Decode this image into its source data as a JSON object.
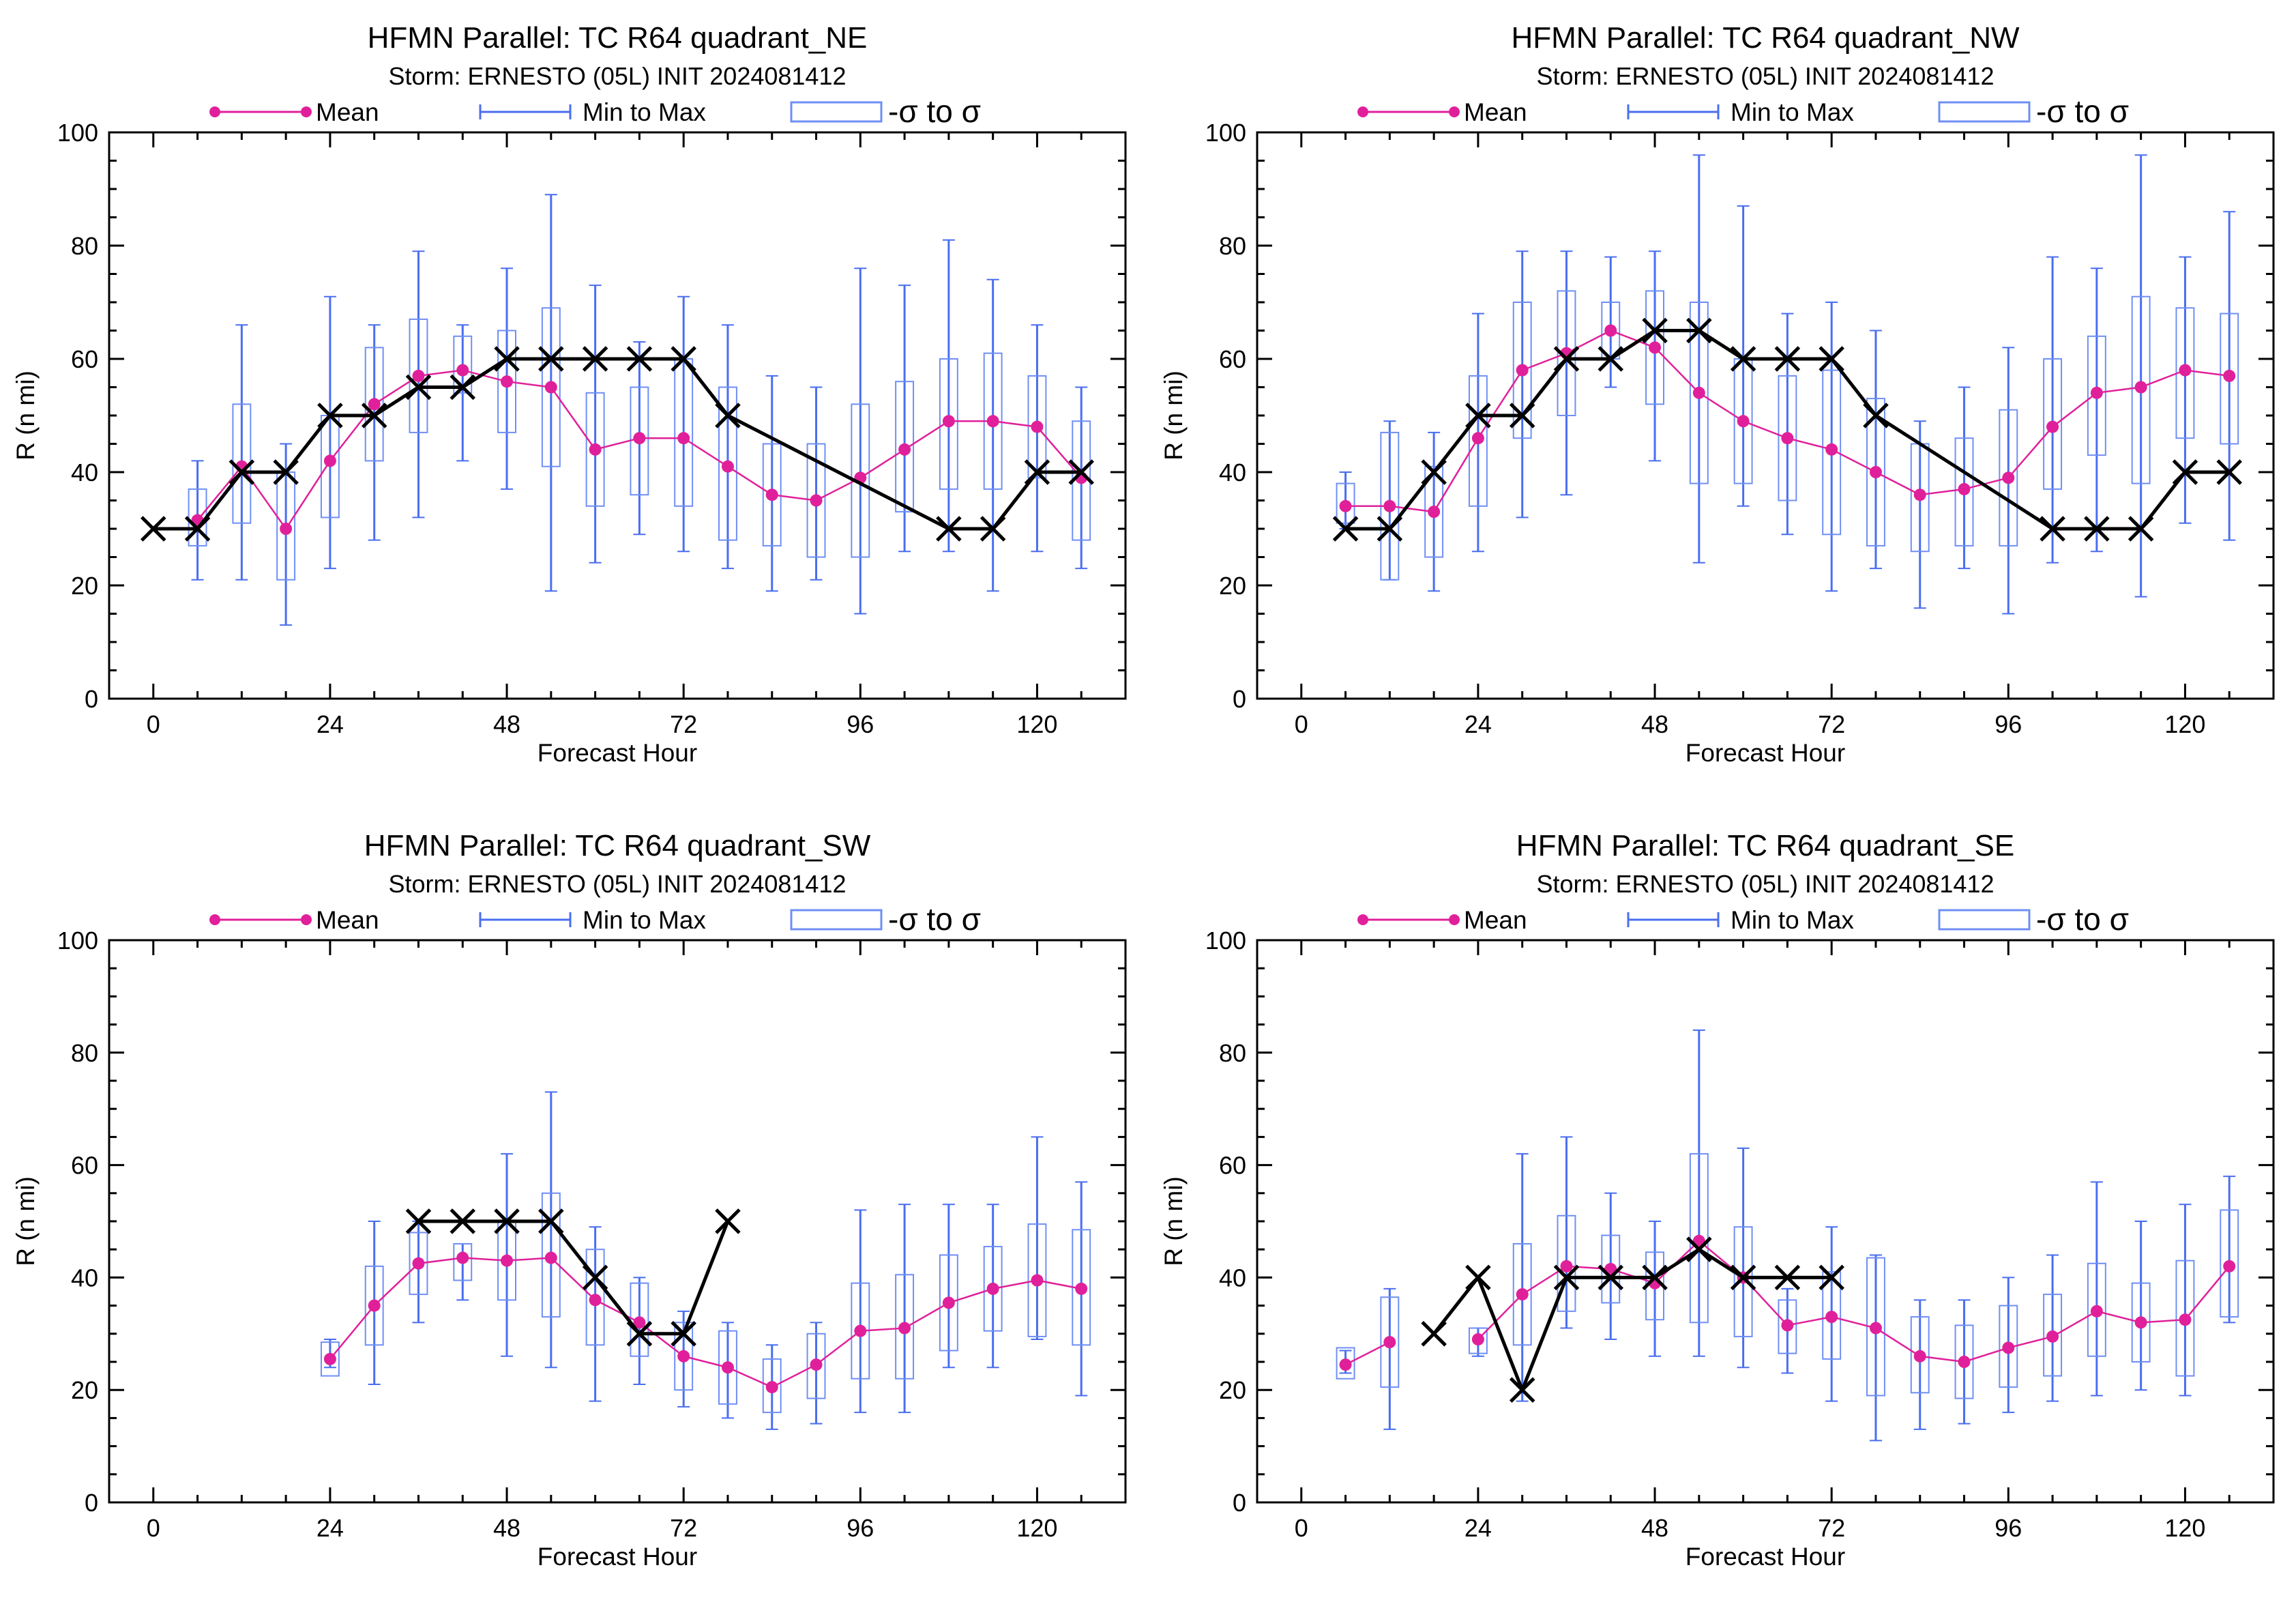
{
  "colors": {
    "mean": "#e0209a",
    "minmax": "#4a6ef0",
    "sigma_box": "#6f8ff5",
    "best_track": "#000000"
  },
  "legend": {
    "mean": "Mean",
    "minmax": "Min to Max",
    "sigma": "-σ to σ"
  },
  "chart_data": [
    {
      "type": "box",
      "title": "HFMN Parallel: TC  R64 quadrant_NE",
      "subtitle": "Storm: ERNESTO (05L) INIT 2024081412",
      "xlabel": "Forecast Hour",
      "ylabel": "R (n mi)",
      "xlim": [
        -6,
        132
      ],
      "ylim": [
        0,
        100
      ],
      "xticks": [
        0,
        24,
        48,
        72,
        96,
        120
      ],
      "yticks": [
        0,
        20,
        40,
        60,
        80,
        100
      ],
      "x": [
        6,
        12,
        18,
        24,
        30,
        36,
        42,
        48,
        54,
        60,
        66,
        72,
        78,
        84,
        90,
        96,
        102,
        108,
        114,
        120,
        126
      ],
      "mean": [
        31.5,
        41,
        30,
        42,
        52,
        57,
        58,
        56,
        55,
        44,
        46,
        46,
        41,
        36,
        35,
        39,
        44,
        49,
        49,
        48,
        39
      ],
      "min": [
        21,
        21,
        13,
        23,
        28,
        32,
        42,
        37,
        19,
        24,
        29,
        26,
        23,
        19,
        21,
        15,
        26,
        26,
        19,
        26,
        23
      ],
      "max": [
        42,
        66,
        45,
        71,
        66,
        79,
        66,
        76,
        89,
        73,
        63,
        71,
        66,
        57,
        55,
        76,
        73,
        81,
        74,
        66,
        55
      ],
      "sigma_low": [
        27,
        31,
        21,
        32,
        42,
        47,
        54,
        47,
        41,
        34,
        36,
        34,
        28,
        27,
        25,
        25,
        33,
        37,
        37,
        39,
        28
      ],
      "sigma_high": [
        37,
        52,
        40,
        50,
        62,
        67,
        64,
        65,
        69,
        54,
        55,
        60,
        55,
        45,
        45,
        52,
        56,
        60,
        61,
        57,
        49
      ],
      "best_track": {
        "x": [
          0,
          6,
          12,
          18,
          24,
          30,
          36,
          42,
          48,
          54,
          60,
          66,
          72,
          78,
          108,
          114,
          120,
          126
        ],
        "y": [
          30,
          30,
          40,
          40,
          50,
          50,
          55,
          55,
          60,
          60,
          60,
          60,
          60,
          50,
          30,
          30,
          40,
          40
        ]
      }
    },
    {
      "type": "box",
      "title": "HFMN Parallel: TC  R64 quadrant_NW",
      "subtitle": "Storm: ERNESTO (05L) INIT 2024081412",
      "xlabel": "Forecast Hour",
      "ylabel": "R (n mi)",
      "xlim": [
        -6,
        132
      ],
      "ylim": [
        0,
        100
      ],
      "xticks": [
        0,
        24,
        48,
        72,
        96,
        120
      ],
      "yticks": [
        0,
        20,
        40,
        60,
        80,
        100
      ],
      "x": [
        6,
        12,
        18,
        24,
        30,
        36,
        42,
        48,
        54,
        60,
        66,
        72,
        78,
        84,
        90,
        96,
        102,
        108,
        114,
        120,
        126
      ],
      "mean": [
        34,
        34,
        33,
        46,
        58,
        61,
        65,
        62,
        54,
        49,
        46,
        44,
        40,
        36,
        37,
        39,
        48,
        54,
        55,
        58,
        57
      ],
      "min": [
        30,
        21,
        19,
        26,
        32,
        36,
        55,
        42,
        24,
        34,
        29,
        19,
        23,
        16,
        23,
        15,
        24,
        26,
        18,
        31,
        28
      ],
      "max": [
        40,
        49,
        47,
        68,
        79,
        79,
        78,
        79,
        96,
        87,
        68,
        70,
        65,
        49,
        55,
        62,
        78,
        76,
        96,
        78,
        86
      ],
      "sigma_low": [
        31,
        21,
        25,
        34,
        46,
        50,
        60,
        52,
        38,
        38,
        35,
        29,
        27,
        26,
        27,
        27,
        37,
        43,
        38,
        46,
        45
      ],
      "sigma_high": [
        38,
        47,
        41,
        57,
        70,
        72,
        70,
        72,
        70,
        60,
        57,
        58,
        53,
        45,
        46,
        51,
        60,
        64,
        71,
        69,
        68
      ],
      "best_track": {
        "x": [
          6,
          12,
          18,
          24,
          30,
          36,
          42,
          48,
          54,
          60,
          66,
          72,
          78,
          102,
          108,
          114,
          120,
          126
        ],
        "y": [
          30,
          30,
          40,
          50,
          50,
          60,
          60,
          65,
          65,
          60,
          60,
          60,
          50,
          30,
          30,
          30,
          40,
          40
        ]
      }
    },
    {
      "type": "box",
      "title": "HFMN Parallel: TC  R64 quadrant_SW",
      "subtitle": "Storm: ERNESTO (05L) INIT 2024081412",
      "xlabel": "Forecast Hour",
      "ylabel": "R (n mi)",
      "xlim": [
        -6,
        132
      ],
      "ylim": [
        0,
        100
      ],
      "xticks": [
        0,
        24,
        48,
        72,
        96,
        120
      ],
      "yticks": [
        0,
        20,
        40,
        60,
        80,
        100
      ],
      "x": [
        24,
        30,
        36,
        42,
        48,
        54,
        60,
        66,
        72,
        78,
        84,
        90,
        96,
        102,
        108,
        114,
        120,
        126
      ],
      "mean": [
        25.5,
        35,
        42.5,
        43.5,
        43,
        43.5,
        36,
        32,
        26,
        24,
        20.5,
        24.5,
        30.5,
        31,
        35.5,
        38,
        39.5,
        38
      ],
      "min": [
        24,
        21,
        32,
        36,
        26,
        24,
        18,
        21,
        17,
        15,
        13,
        14,
        16,
        16,
        24,
        24,
        29,
        19
      ],
      "max": [
        29,
        50,
        50,
        46,
        62,
        73,
        49,
        40,
        34,
        32,
        28,
        32,
        52,
        53,
        53,
        53,
        65,
        57
      ],
      "sigma_low": [
        22.5,
        28,
        37,
        39.5,
        36,
        33,
        28,
        26,
        20,
        17.5,
        16,
        18.5,
        22,
        22,
        27,
        30.5,
        29.5,
        28
      ],
      "sigma_high": [
        28.5,
        42,
        48,
        46,
        50,
        55,
        45,
        39,
        32,
        30.5,
        25.5,
        30,
        39,
        40.5,
        44,
        45.5,
        49.5,
        48.5
      ],
      "best_track": {
        "x": [
          36,
          42,
          48,
          54,
          60,
          66,
          72,
          78
        ],
        "y": [
          50,
          50,
          50,
          50,
          40,
          30,
          30,
          50
        ]
      }
    },
    {
      "type": "box",
      "title": "HFMN Parallel: TC  R64 quadrant_SE",
      "subtitle": "Storm: ERNESTO (05L) INIT 2024081412",
      "xlabel": "Forecast Hour",
      "ylabel": "R (n mi)",
      "xlim": [
        -6,
        132
      ],
      "ylim": [
        0,
        100
      ],
      "xticks": [
        0,
        24,
        48,
        72,
        96,
        120
      ],
      "yticks": [
        0,
        20,
        40,
        60,
        80,
        100
      ],
      "x": [
        6,
        12,
        18,
        24,
        30,
        36,
        42,
        48,
        54,
        60,
        66,
        72,
        78,
        84,
        90,
        96,
        102,
        108,
        114,
        120,
        126
      ],
      "mean": [
        24.5,
        28.5,
        null,
        29,
        37,
        42,
        41.5,
        39,
        46.5,
        40,
        31.5,
        33,
        31,
        26,
        25,
        27.5,
        29.5,
        34,
        32,
        32.5,
        42
      ],
      "min": [
        23,
        13,
        null,
        26,
        18,
        31,
        29,
        26,
        26,
        24,
        23,
        18,
        11,
        13,
        14,
        16,
        18,
        19,
        20,
        19,
        32
      ],
      "max": [
        27,
        38,
        null,
        31,
        62,
        65,
        55,
        50,
        84,
        63,
        38,
        49,
        44,
        36,
        36,
        40,
        44,
        57,
        50,
        53,
        58
      ],
      "sigma_low": [
        22,
        20.5,
        null,
        26.5,
        28,
        34,
        35.5,
        32.5,
        32,
        29.5,
        26.5,
        25.5,
        19,
        19.5,
        18.5,
        20.5,
        22.5,
        26,
        25,
        22.5,
        33
      ],
      "sigma_high": [
        27.5,
        36.5,
        null,
        31,
        46,
        51,
        47.5,
        44.5,
        62,
        49,
        36,
        41,
        43.5,
        33,
        31.5,
        35,
        37,
        42.5,
        39,
        43,
        52
      ],
      "best_track": {
        "x": [
          18,
          24,
          30,
          36,
          42,
          48,
          54,
          60,
          66,
          72
        ],
        "y": [
          30,
          40,
          20,
          40,
          40,
          40,
          45,
          40,
          40,
          40
        ]
      }
    }
  ]
}
